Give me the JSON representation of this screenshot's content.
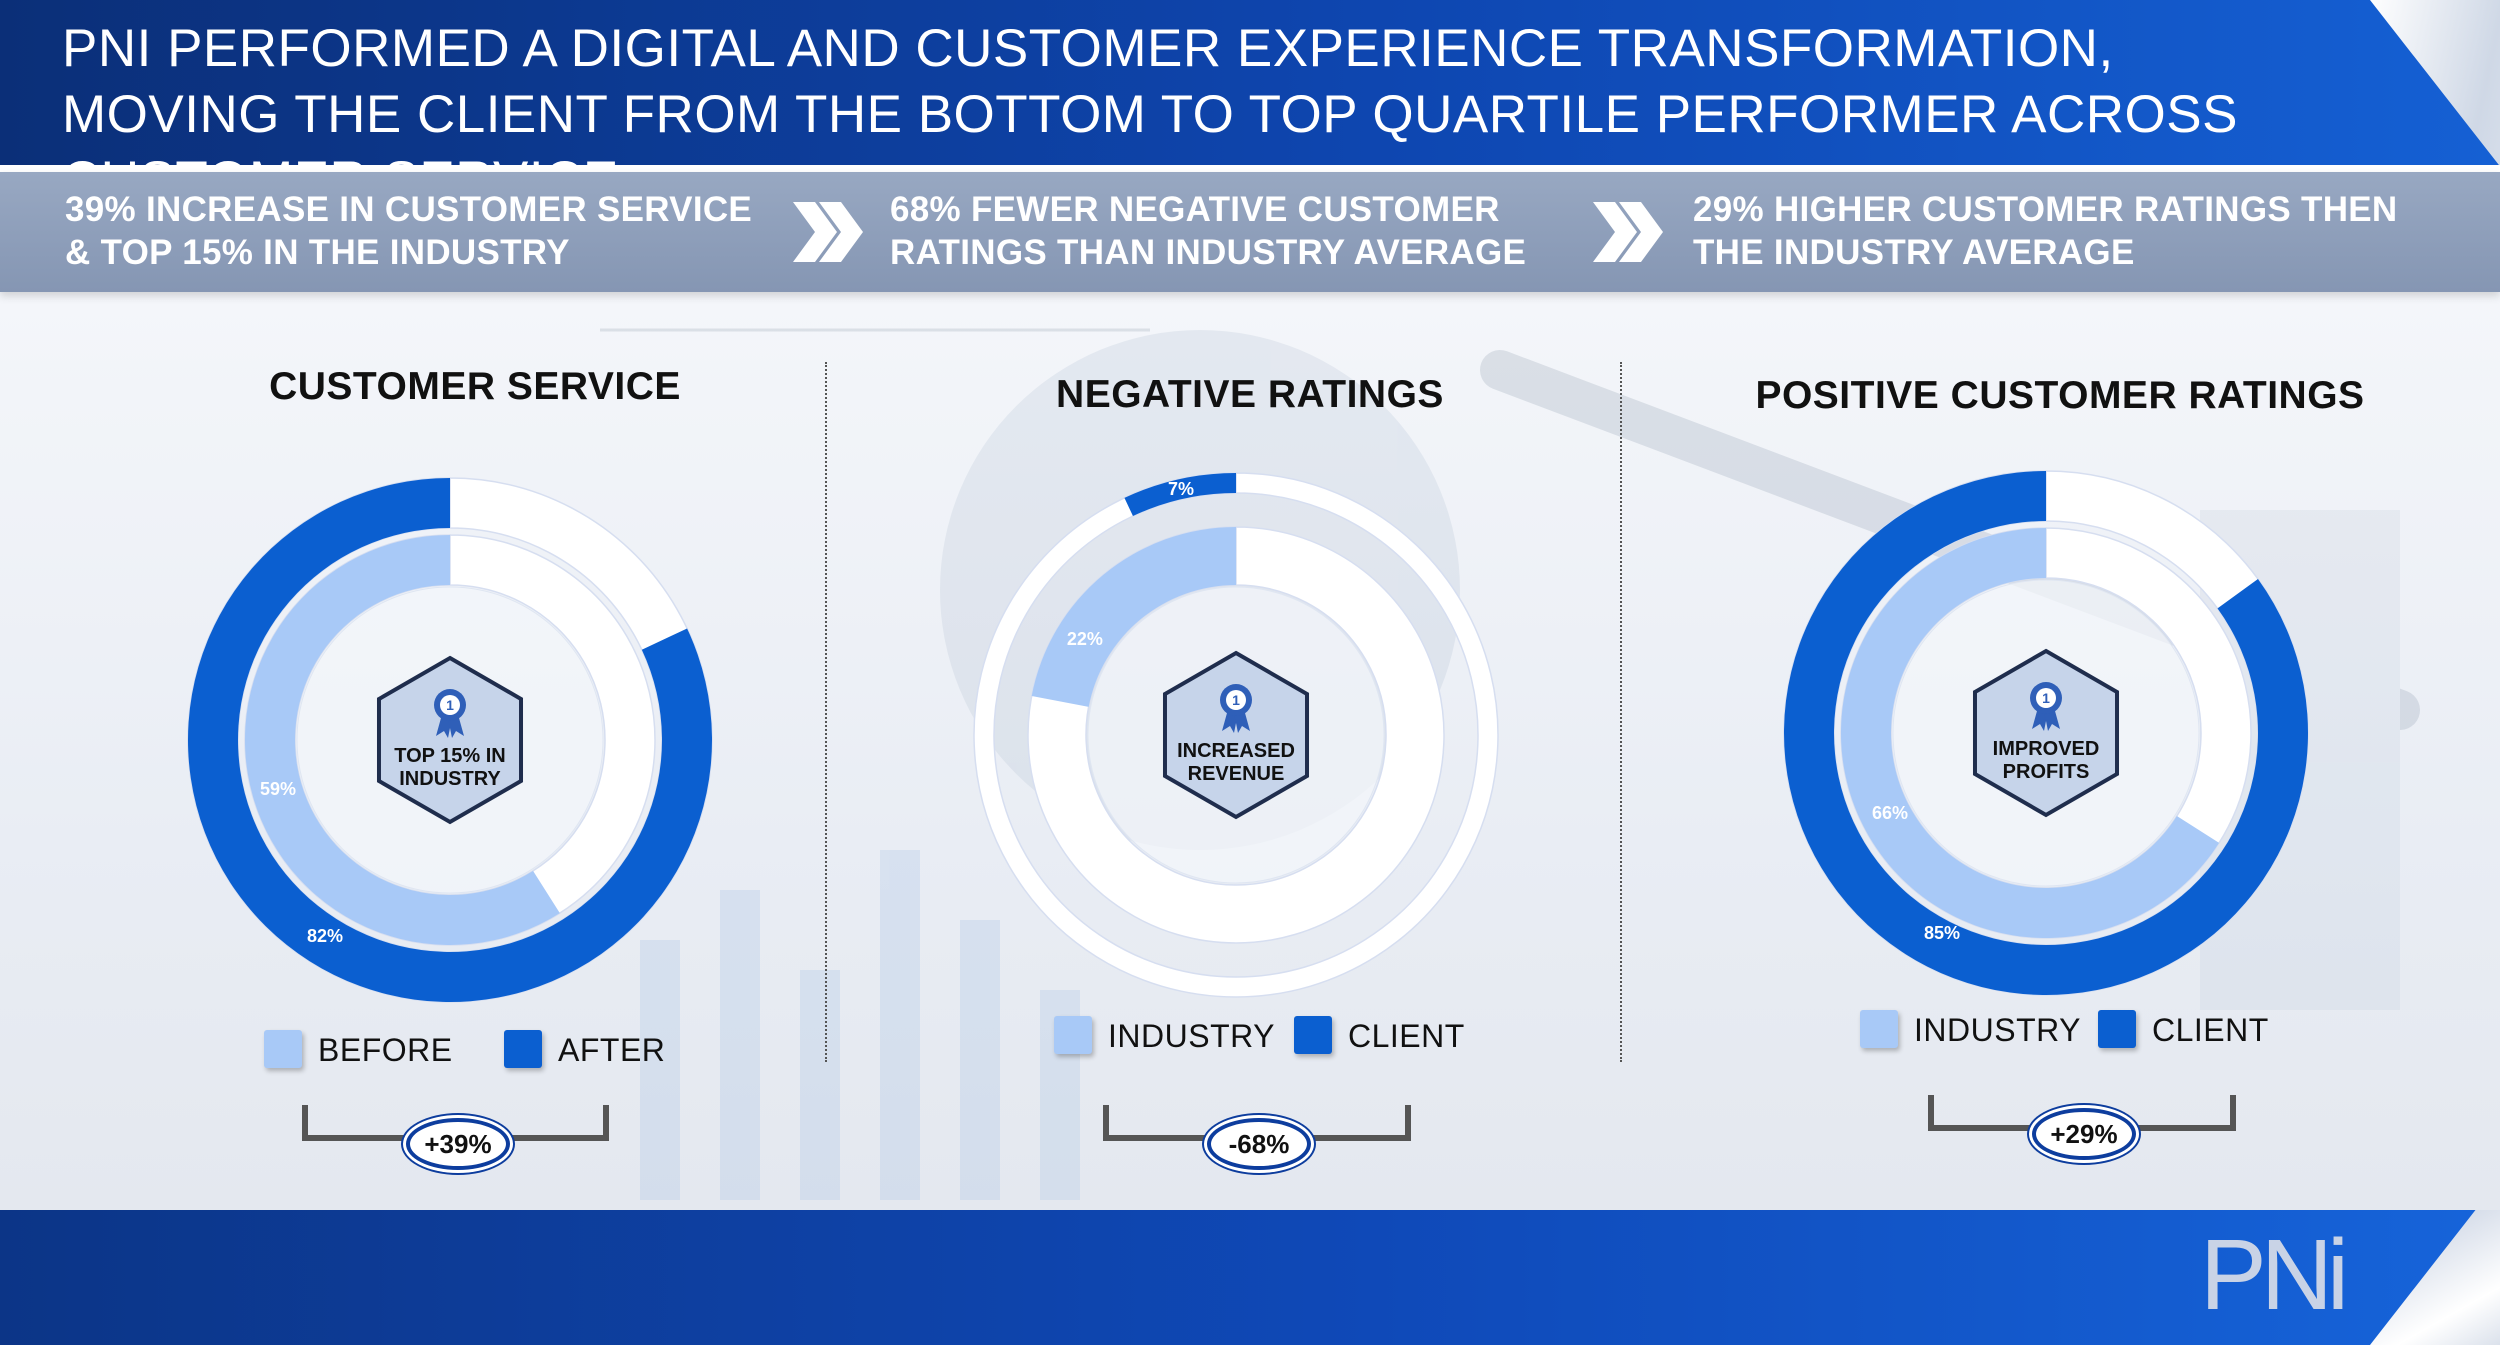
{
  "header": {
    "title": "PNI PERFORMED A DIGITAL AND CUSTOMER EXPERIENCE TRANSFORMATION, MOVING THE CLIENT FROM THE BOTTOM TO TOP QUARTILE PERFORMER ACROSS CUSTOMER SERVICE"
  },
  "summary": [
    {
      "text": "39% INCREASE IN CUSTOMER SERVICE & TOP 15% IN THE INDUSTRY"
    },
    {
      "text": "68% FEWER NEGATIVE CUSTOMER RATINGS THAN INDUSTRY AVERAGE"
    },
    {
      "text": "29% HIGHER CUSTOMER RATINGS THEN THE INDUSTRY AVERAGE"
    }
  ],
  "colors": {
    "client": "#0b5fd0",
    "industry": "#a8c9f7",
    "empty": "#ffffff",
    "badge_fill": "#c6d4ea",
    "badge_stroke": "#1f2d4d",
    "medal": "#2f5fb8"
  },
  "chart_data": [
    {
      "type": "donut",
      "title": "CUSTOMER SERVICE",
      "series": [
        {
          "name": "BEFORE",
          "ring": "inner",
          "value": 59,
          "label": "59%"
        },
        {
          "name": "AFTER",
          "ring": "outer",
          "value": 82,
          "label": "82%"
        }
      ],
      "center_label": "TOP 15% IN INDUSTRY",
      "legend": [
        "BEFORE",
        "AFTER"
      ],
      "delta": "+39%"
    },
    {
      "type": "donut",
      "title": "NEGATIVE RATINGS",
      "series": [
        {
          "name": "INDUSTRY",
          "ring": "inner",
          "value": 22,
          "label": "22%"
        },
        {
          "name": "CLIENT",
          "ring": "outer",
          "value": 7,
          "label": "7%"
        }
      ],
      "center_label": "INCREASED REVENUE",
      "legend": [
        "INDUSTRY",
        "CLIENT"
      ],
      "delta": "-68%"
    },
    {
      "type": "donut",
      "title": "POSITIVE CUSTOMER RATINGS",
      "series": [
        {
          "name": "INDUSTRY",
          "ring": "inner",
          "value": 66,
          "label": "66%"
        },
        {
          "name": "CLIENT",
          "ring": "outer",
          "value": 85,
          "label": "85%"
        }
      ],
      "center_label": "IMPROVED PROFITS",
      "legend": [
        "INDUSTRY",
        "CLIENT"
      ],
      "delta": "+29%"
    }
  ],
  "footer": {
    "logo": "PNi"
  }
}
